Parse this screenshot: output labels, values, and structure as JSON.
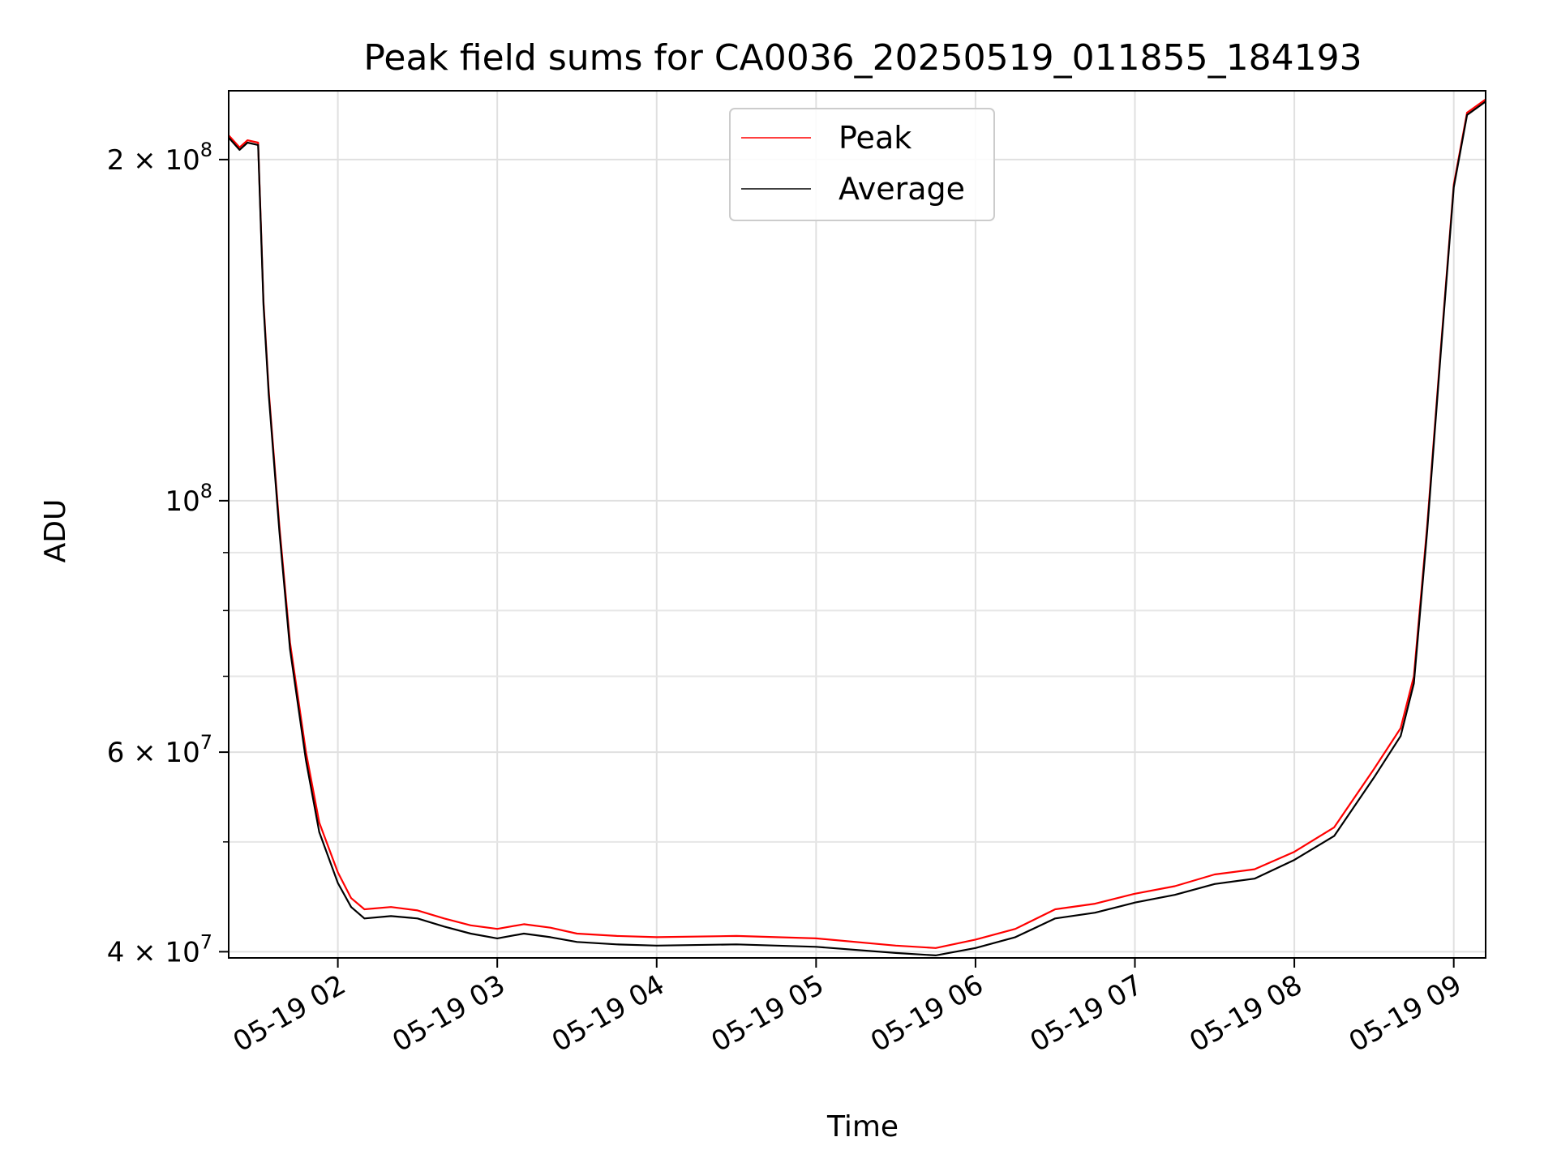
{
  "chart_data": {
    "type": "line",
    "title": "Peak field sums for CA0036_20250519_011855_184193",
    "xlabel": "Time",
    "ylabel": "ADU",
    "y_scale": "log",
    "ylim": [
      39500000,
      230000000
    ],
    "xlim": [
      "05-19 01:18:55",
      "05-19 09:12:00"
    ],
    "grid": true,
    "legend_position": "upper center",
    "x_ticks": [
      "05-19 02",
      "05-19 03",
      "05-19 04",
      "05-19 05",
      "05-19 06",
      "05-19 07",
      "05-19 08",
      "05-19 09"
    ],
    "y_ticks": [
      {
        "value": 40000000,
        "mantissa": "4",
        "exponent": "7"
      },
      {
        "value": 60000000,
        "mantissa": "6",
        "exponent": "7"
      },
      {
        "value": 100000000,
        "mantissa": "",
        "exponent": "8"
      },
      {
        "value": 200000000,
        "mantissa": "2",
        "exponent": "8"
      }
    ],
    "x_time": [
      "01:19",
      "01:23",
      "01:26",
      "01:30",
      "01:32",
      "01:34",
      "01:38",
      "01:42",
      "01:48",
      "01:53",
      "02:00",
      "02:05",
      "02:10",
      "02:20",
      "02:30",
      "02:40",
      "02:50",
      "03:00",
      "03:10",
      "03:20",
      "03:30",
      "03:45",
      "04:00",
      "04:30",
      "05:00",
      "05:30",
      "05:45",
      "06:00",
      "06:15",
      "06:30",
      "06:45",
      "07:00",
      "07:15",
      "07:30",
      "07:45",
      "08:00",
      "08:15",
      "08:30",
      "08:40",
      "08:45",
      "08:50",
      "08:55",
      "09:00",
      "09:05",
      "09:12"
    ],
    "series": [
      {
        "name": "Peak",
        "color": "#ff0000",
        "values": [
          210000000,
          205000000,
          208000000,
          207000000,
          150000000,
          125000000,
          95000000,
          75000000,
          60000000,
          52000000,
          47000000,
          44600000,
          43600000,
          43800000,
          43500000,
          42800000,
          42200000,
          41900000,
          42300000,
          42000000,
          41500000,
          41300000,
          41200000,
          41300000,
          41100000,
          40500000,
          40300000,
          41000000,
          41900000,
          43600000,
          44100000,
          45000000,
          45700000,
          46800000,
          47300000,
          49000000,
          51500000,
          58000000,
          63000000,
          70000000,
          95000000,
          135000000,
          190000000,
          220000000,
          226000000
        ]
      },
      {
        "name": "Average",
        "color": "#000000",
        "values": [
          209000000,
          204000000,
          207000000,
          206000000,
          149000000,
          124000000,
          94000000,
          74000000,
          59000000,
          51000000,
          46000000,
          43800000,
          42800000,
          43000000,
          42800000,
          42100000,
          41500000,
          41100000,
          41500000,
          41200000,
          40800000,
          40600000,
          40500000,
          40600000,
          40400000,
          39900000,
          39700000,
          40300000,
          41200000,
          42800000,
          43300000,
          44200000,
          44900000,
          45900000,
          46400000,
          48200000,
          50600000,
          57000000,
          62000000,
          69000000,
          94000000,
          134000000,
          189000000,
          219000000,
          225000000
        ]
      }
    ]
  }
}
